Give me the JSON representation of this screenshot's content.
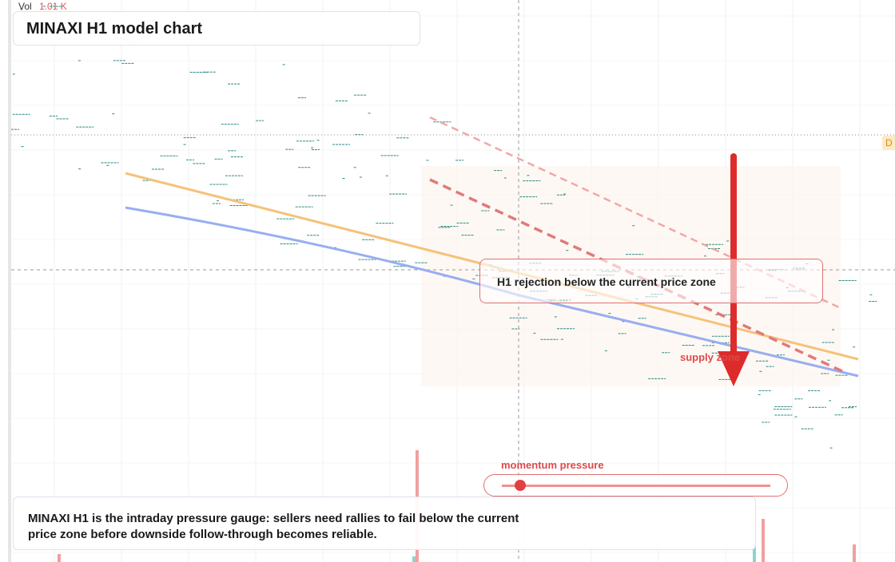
{
  "header": {
    "vol_label": "Vol",
    "vol_value": "1.01 K",
    "title": "MINAXI H1 model chart"
  },
  "badge": "D",
  "annotations": {
    "rejection": "H1 rejection below the current price zone",
    "zone": "supply zone",
    "gauge": "momentum pressure"
  },
  "caption": "MINAXI H1 is the intraday pressure gauge: sellers need rallies to fail below the current price zone before downside follow-through becomes reliable."
}
